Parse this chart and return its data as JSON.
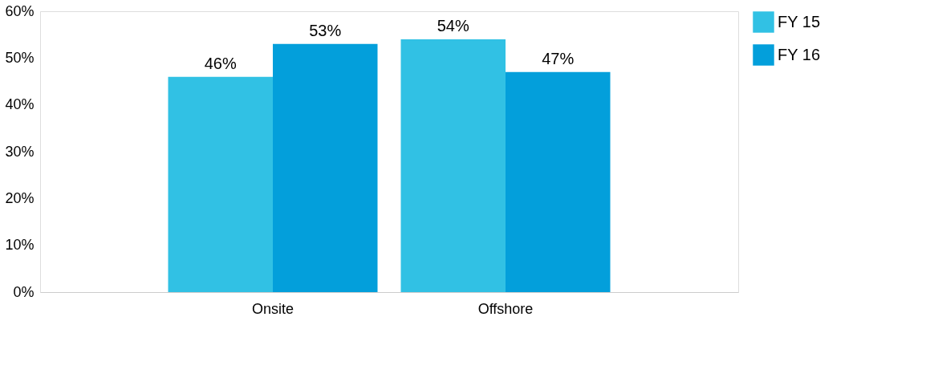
{
  "chart_data": {
    "type": "bar",
    "categories": [
      "Onsite",
      "Offshore"
    ],
    "series": [
      {
        "name": "FY 15",
        "color": "#31c1e4",
        "values": [
          46,
          54
        ]
      },
      {
        "name": "FY 16",
        "color": "#039fdb",
        "values": [
          53,
          47
        ]
      }
    ],
    "ylim": [
      0,
      60
    ],
    "yticks": [
      {
        "value": 0,
        "label": "0%"
      },
      {
        "value": 10,
        "label": "10%"
      },
      {
        "value": 20,
        "label": "20%"
      },
      {
        "value": 30,
        "label": "30%"
      },
      {
        "value": 40,
        "label": "40%"
      },
      {
        "value": 50,
        "label": "50%"
      },
      {
        "value": 60,
        "label": "60%"
      }
    ],
    "value_labels": [
      [
        "46%",
        "54%"
      ],
      [
        "53%",
        "47%"
      ]
    ],
    "legend": "top right",
    "grid": false
  }
}
